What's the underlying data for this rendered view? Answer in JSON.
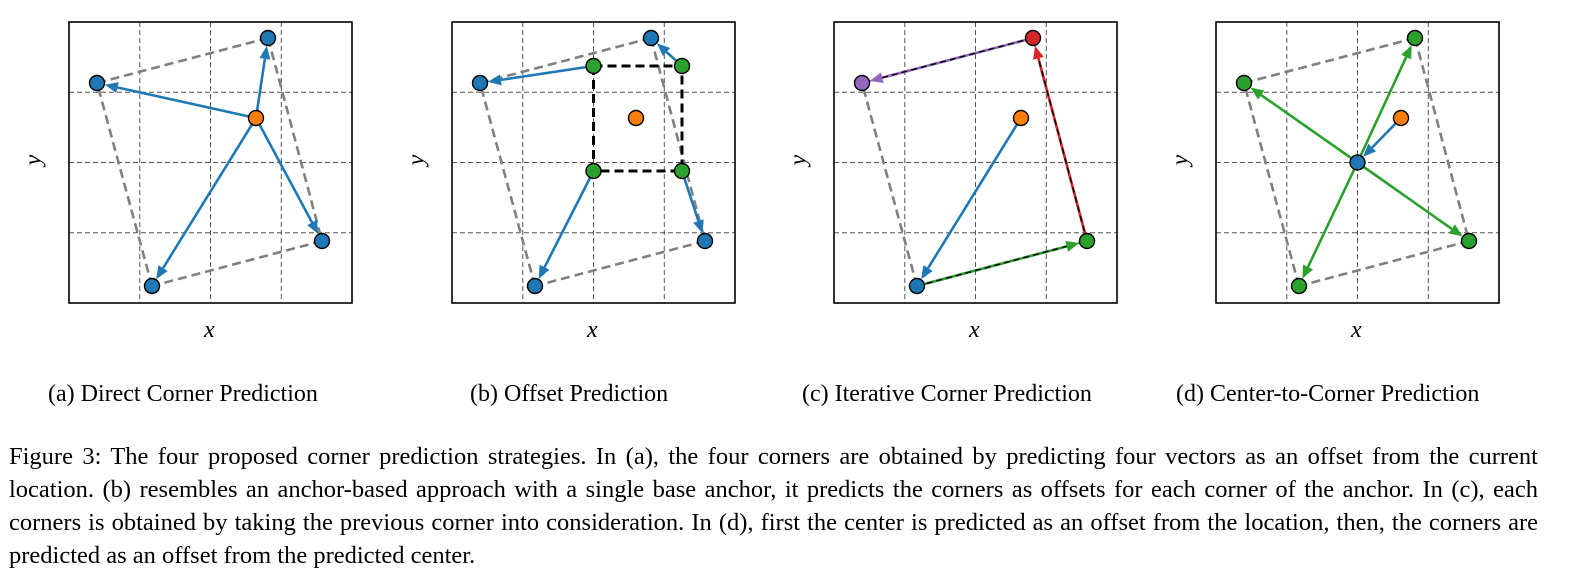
{
  "figure": {
    "x_label": "x",
    "y_label": "y",
    "colors": {
      "blue": "#1f77b4",
      "orange": "#ff7f0e",
      "green": "#2ca02c",
      "red": "#d62728",
      "purple": "#9467bd",
      "gray": "#808080",
      "black": "#000000"
    },
    "panels": [
      {
        "id": "a",
        "subcaption": "(a) Direct Corner Prediction"
      },
      {
        "id": "b",
        "subcaption": "(b) Offset Prediction"
      },
      {
        "id": "c",
        "subcaption": "(c) Iterative Corner Prediction"
      },
      {
        "id": "d",
        "subcaption": "(d) Center-to-Corner Prediction"
      }
    ]
  },
  "caption": "Figure 3: The four proposed corner prediction strategies. In (a), the four corners are obtained by predicting four vectors as an offset from the current location. (b) resembles an anchor-based approach with a single base anchor, it predicts the corners as offsets for each corner of the anchor. In (c), each corners is obtained by taking the previous corner into consideration. In (d), first the center is predicted as an offset from the location, then, the corners are predicted as an offset from the predicted center."
}
